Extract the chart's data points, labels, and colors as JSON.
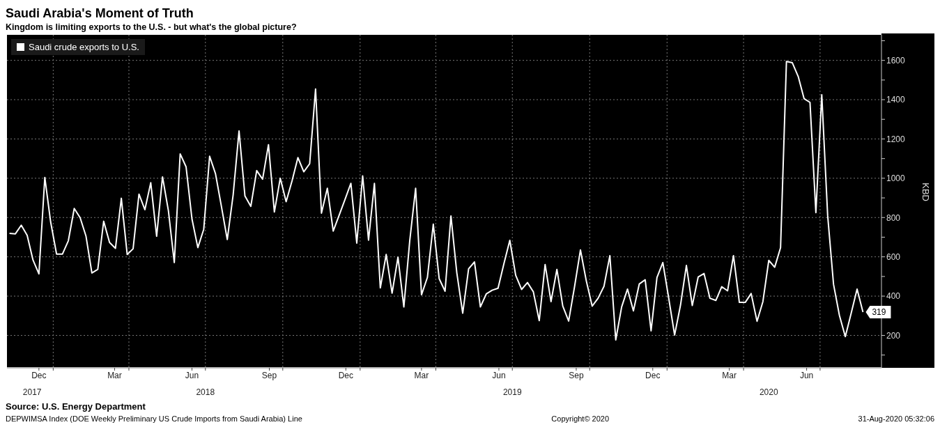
{
  "chart_data": {
    "type": "line",
    "title": "Saudi Arabia's Moment of Truth",
    "subtitle": "Kingdom is limiting exports to the U.S. - but what's the global picture?",
    "ylabel": "KBD",
    "x": [
      "2017-11-10",
      "2017-11-17",
      "2017-11-24",
      "2017-12-01",
      "2017-12-08",
      "2017-12-15",
      "2017-12-22",
      "2017-12-29",
      "2018-01-05",
      "2018-01-12",
      "2018-01-19",
      "2018-01-26",
      "2018-02-02",
      "2018-02-09",
      "2018-02-16",
      "2018-02-23",
      "2018-03-02",
      "2018-03-09",
      "2018-03-16",
      "2018-03-23",
      "2018-03-30",
      "2018-04-06",
      "2018-04-13",
      "2018-04-20",
      "2018-04-27",
      "2018-05-04",
      "2018-05-11",
      "2018-05-18",
      "2018-05-25",
      "2018-06-01",
      "2018-06-08",
      "2018-06-15",
      "2018-06-22",
      "2018-06-29",
      "2018-07-06",
      "2018-07-13",
      "2018-07-20",
      "2018-07-27",
      "2018-08-03",
      "2018-08-10",
      "2018-08-17",
      "2018-08-24",
      "2018-08-31",
      "2018-09-07",
      "2018-09-14",
      "2018-09-21",
      "2018-09-28",
      "2018-10-05",
      "2018-10-12",
      "2018-10-19",
      "2018-10-26",
      "2018-11-02",
      "2018-11-09",
      "2018-11-16",
      "2018-11-23",
      "2018-11-30",
      "2018-12-07",
      "2018-12-14",
      "2018-12-21",
      "2018-12-28",
      "2019-01-04",
      "2019-01-11",
      "2019-01-18",
      "2019-01-25",
      "2019-02-01",
      "2019-02-08",
      "2019-02-15",
      "2019-02-22",
      "2019-03-01",
      "2019-03-08",
      "2019-03-15",
      "2019-03-22",
      "2019-03-29",
      "2019-04-05",
      "2019-04-12",
      "2019-04-19",
      "2019-04-26",
      "2019-05-03",
      "2019-05-10",
      "2019-05-17",
      "2019-05-24",
      "2019-05-31",
      "2019-06-07",
      "2019-06-14",
      "2019-06-21",
      "2019-06-28",
      "2019-07-05",
      "2019-07-12",
      "2019-07-19",
      "2019-07-26",
      "2019-08-02",
      "2019-08-09",
      "2019-08-16",
      "2019-08-23",
      "2019-08-30",
      "2019-09-06",
      "2019-09-13",
      "2019-09-20",
      "2019-09-27",
      "2019-10-04",
      "2019-10-11",
      "2019-10-18",
      "2019-10-25",
      "2019-11-01",
      "2019-11-08",
      "2019-11-15",
      "2019-11-22",
      "2019-11-29",
      "2019-12-06",
      "2019-12-13",
      "2019-12-20",
      "2019-12-27",
      "2020-01-03",
      "2020-01-10",
      "2020-01-17",
      "2020-01-24",
      "2020-01-31",
      "2020-02-07",
      "2020-02-14",
      "2020-02-21",
      "2020-02-28",
      "2020-03-06",
      "2020-03-13",
      "2020-03-20",
      "2020-03-27",
      "2020-04-03",
      "2020-04-10",
      "2020-04-17",
      "2020-04-24",
      "2020-05-01",
      "2020-05-08",
      "2020-05-15",
      "2020-05-22",
      "2020-05-29",
      "2020-06-05",
      "2020-06-12",
      "2020-06-19",
      "2020-06-26",
      "2020-07-03",
      "2020-07-10",
      "2020-07-17",
      "2020-07-24",
      "2020-07-31",
      "2020-08-07",
      "2020-08-14",
      "2020-08-21"
    ],
    "series": [
      {
        "name": "Saudi crude exports to U.S.",
        "color": "#ffffff",
        "values": [
          719,
          717,
          761,
          710,
          583,
          513,
          1004,
          776,
          614,
          614,
          682,
          846,
          799,
          705,
          518,
          536,
          781,
          673,
          643,
          898,
          612,
          641,
          919,
          840,
          977,
          705,
          1007,
          834,
          571,
          1124,
          1058,
          793,
          647,
          740,
          1112,
          1023,
          857,
          688,
          916,
          1241,
          910,
          857,
          1039,
          995,
          1171,
          828,
          1000,
          881,
          986,
          1105,
          1033,
          1074,
          1454,
          822,
          949,
          731,
          811,
          892,
          974,
          670,
          1012,
          685,
          974,
          442,
          612,
          415,
          598,
          345,
          682,
          949,
          407,
          495,
          766,
          489,
          425,
          808,
          518,
          313,
          539,
          574,
          345,
          411,
          430,
          440,
          565,
          684,
          506,
          434,
          469,
          422,
          275,
          561,
          372,
          536,
          349,
          273,
          448,
          635,
          477,
          349,
          389,
          450,
          606,
          177,
          345,
          436,
          325,
          462,
          483,
          223,
          495,
          571,
          389,
          202,
          354,
          556,
          352,
          497,
          515,
          389,
          378,
          448,
          427,
          606,
          368,
          368,
          413,
          272,
          372,
          582,
          547,
          647,
          1594,
          1588,
          1518,
          1405,
          1386,
          825,
          1425,
          811,
          460,
          302,
          194,
          313,
          436,
          319
        ],
        "value_labels": [
          null,
          null,
          null,
          null,
          null,
          null,
          null,
          null,
          null,
          null,
          null,
          null,
          null,
          null,
          null,
          null,
          null,
          null,
          null,
          null,
          null,
          null,
          null,
          null,
          null,
          null,
          null,
          null,
          null,
          null,
          null,
          null,
          null,
          null,
          null,
          null,
          null,
          null,
          null,
          null,
          null,
          null,
          null,
          null,
          null,
          null,
          null,
          null,
          null,
          null,
          null,
          null,
          null,
          null,
          null,
          null,
          null,
          null,
          null,
          null,
          null,
          null,
          null,
          null,
          null,
          null,
          null,
          null,
          null,
          null,
          null,
          null,
          null,
          null,
          null,
          null,
          null,
          null,
          null,
          null,
          null,
          null,
          null,
          null,
          null,
          null,
          null,
          null,
          null,
          null,
          null,
          null,
          null,
          null,
          null,
          null,
          null,
          null,
          null,
          null,
          null,
          null,
          null,
          null,
          null,
          null,
          null,
          null,
          null,
          null,
          null,
          null,
          null,
          null,
          null,
          null,
          null,
          null,
          null,
          null,
          null,
          null,
          null,
          null,
          null,
          null,
          null,
          null,
          null,
          null,
          null,
          null,
          null,
          null,
          null,
          null,
          null,
          null,
          null,
          null,
          null,
          null,
          null,
          null,
          null,
          "319"
        ]
      }
    ],
    "xlim": [
      "2017-11-07",
      "2020-09-12"
    ],
    "xticks": [
      {
        "value": "2017-12-15",
        "label": "Dec"
      },
      {
        "value": "2018-01-01",
        "label": null
      },
      {
        "value": "2018-03-15",
        "label": "Mar"
      },
      {
        "value": "2018-04-01",
        "label": null
      },
      {
        "value": "2018-06-15",
        "label": "Jun"
      },
      {
        "value": "2018-07-01",
        "label": null
      },
      {
        "value": "2018-09-15",
        "label": "Sep"
      },
      {
        "value": "2018-10-01",
        "label": null
      },
      {
        "value": "2018-12-15",
        "label": "Dec"
      },
      {
        "value": "2019-01-01",
        "label": null
      },
      {
        "value": "2019-03-15",
        "label": "Mar"
      },
      {
        "value": "2019-04-01",
        "label": null
      },
      {
        "value": "2019-06-15",
        "label": "Jun"
      },
      {
        "value": "2019-07-01",
        "label": null
      },
      {
        "value": "2019-09-15",
        "label": "Sep"
      },
      {
        "value": "2019-10-01",
        "label": null
      },
      {
        "value": "2019-12-15",
        "label": "Dec"
      },
      {
        "value": "2020-01-01",
        "label": null
      },
      {
        "value": "2020-03-15",
        "label": "Mar"
      },
      {
        "value": "2020-04-01",
        "label": null
      },
      {
        "value": "2020-06-15",
        "label": "Jun"
      },
      {
        "value": "2020-07-01",
        "label": null
      }
    ],
    "x2lim": [
      "2017-11-07",
      "2020-09-12"
    ],
    "x2ticks": [
      {
        "value": "2017-12-07",
        "label": "2017"
      },
      {
        "value": "2018-07-01",
        "label": "2018"
      },
      {
        "value": "2019-07-01",
        "label": "2019"
      },
      {
        "value": "2020-05-01",
        "label": "2020"
      }
    ],
    "ylim": [
      35,
      1730
    ],
    "yticks": [
      {
        "value": 100,
        "label": null
      },
      200,
      {
        "value": 300,
        "label": null
      },
      400,
      {
        "value": 500,
        "label": null
      },
      600,
      {
        "value": 700,
        "label": null
      },
      800,
      {
        "value": 900,
        "label": null
      },
      1000,
      {
        "value": 1100,
        "label": null
      },
      1200,
      {
        "value": 1300,
        "label": null
      },
      1400,
      {
        "value": 1500,
        "label": null
      },
      1600,
      {
        "value": 1700,
        "label": null
      }
    ],
    "grid": true,
    "legend": "top left",
    "annotations": [
      "Source: U.S. Energy Department",
      "DEPWIMSA Index (DOE Weekly Preliminary US Crude Imports from Saudi Arabia) Line",
      "Copyright© 2020",
      "31-Aug-2020 05:32:06"
    ]
  }
}
